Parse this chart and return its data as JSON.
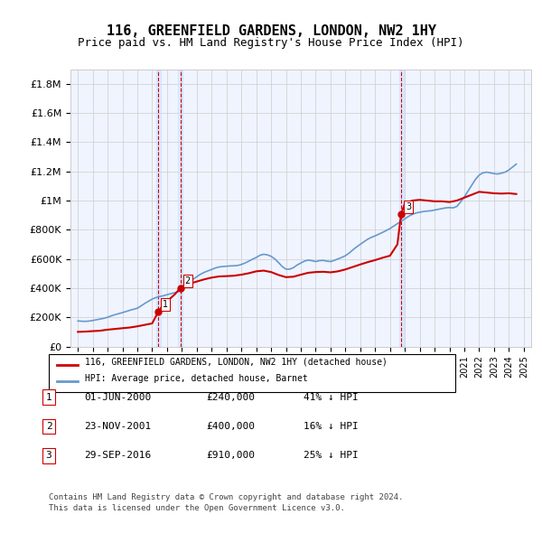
{
  "title": "116, GREENFIELD GARDENS, LONDON, NW2 1HY",
  "subtitle": "Price paid vs. HM Land Registry's House Price Index (HPI)",
  "legend_red": "116, GREENFIELD GARDENS, LONDON, NW2 1HY (detached house)",
  "legend_blue": "HPI: Average price, detached house, Barnet",
  "footer1": "Contains HM Land Registry data © Crown copyright and database right 2024.",
  "footer2": "This data is licensed under the Open Government Licence v3.0.",
  "transactions": [
    {
      "num": 1,
      "date": "01-JUN-2000",
      "price": 240000,
      "pct": "41%",
      "direction": "↓",
      "year_x": 2000.42
    },
    {
      "num": 2,
      "date": "23-NOV-2001",
      "price": 400000,
      "pct": "16%",
      "direction": "↓",
      "year_x": 2001.9
    },
    {
      "num": 3,
      "date": "29-SEP-2016",
      "price": 910000,
      "pct": "25%",
      "direction": "↓",
      "year_x": 2016.75
    }
  ],
  "ylim": [
    0,
    1900000
  ],
  "xlim_start": 1994.5,
  "xlim_end": 2025.5,
  "yticks": [
    0,
    200000,
    400000,
    600000,
    800000,
    1000000,
    1200000,
    1400000,
    1600000,
    1800000
  ],
  "ytick_labels": [
    "£0",
    "£200K",
    "£400K",
    "£600K",
    "£800K",
    "£1M",
    "£1.2M",
    "£1.4M",
    "£1.6M",
    "£1.8M"
  ],
  "xticks": [
    1995,
    1996,
    1997,
    1998,
    1999,
    2000,
    2001,
    2002,
    2003,
    2004,
    2005,
    2006,
    2007,
    2008,
    2009,
    2010,
    2011,
    2012,
    2013,
    2014,
    2015,
    2016,
    2017,
    2018,
    2019,
    2020,
    2021,
    2022,
    2023,
    2024,
    2025
  ],
  "red_color": "#cc0000",
  "blue_color": "#6699cc",
  "vline_color": "#cc0000",
  "shade_color": "#cce0ff",
  "marker_color": "#cc0000",
  "background_color": "#ffffff",
  "grid_color": "#cccccc",
  "hpi_data": {
    "years": [
      1995.0,
      1995.25,
      1995.5,
      1995.75,
      1996.0,
      1996.25,
      1996.5,
      1996.75,
      1997.0,
      1997.25,
      1997.5,
      1997.75,
      1998.0,
      1998.25,
      1998.5,
      1998.75,
      1999.0,
      1999.25,
      1999.5,
      1999.75,
      2000.0,
      2000.25,
      2000.5,
      2000.75,
      2001.0,
      2001.25,
      2001.5,
      2001.75,
      2002.0,
      2002.25,
      2002.5,
      2002.75,
      2003.0,
      2003.25,
      2003.5,
      2003.75,
      2004.0,
      2004.25,
      2004.5,
      2004.75,
      2005.0,
      2005.25,
      2005.5,
      2005.75,
      2006.0,
      2006.25,
      2006.5,
      2006.75,
      2007.0,
      2007.25,
      2007.5,
      2007.75,
      2008.0,
      2008.25,
      2008.5,
      2008.75,
      2009.0,
      2009.25,
      2009.5,
      2009.75,
      2010.0,
      2010.25,
      2010.5,
      2010.75,
      2011.0,
      2011.25,
      2011.5,
      2011.75,
      2012.0,
      2012.25,
      2012.5,
      2012.75,
      2013.0,
      2013.25,
      2013.5,
      2013.75,
      2014.0,
      2014.25,
      2014.5,
      2014.75,
      2015.0,
      2015.25,
      2015.5,
      2015.75,
      2016.0,
      2016.25,
      2016.5,
      2016.75,
      2017.0,
      2017.25,
      2017.5,
      2017.75,
      2018.0,
      2018.25,
      2018.5,
      2018.75,
      2019.0,
      2019.25,
      2019.5,
      2019.75,
      2020.0,
      2020.25,
      2020.5,
      2020.75,
      2021.0,
      2021.25,
      2021.5,
      2021.75,
      2022.0,
      2022.25,
      2022.5,
      2022.75,
      2023.0,
      2023.25,
      2023.5,
      2023.75,
      2024.0,
      2024.25,
      2024.5
    ],
    "values": [
      175000,
      173000,
      172000,
      174000,
      178000,
      183000,
      188000,
      193000,
      200000,
      210000,
      218000,
      225000,
      232000,
      240000,
      248000,
      255000,
      262000,
      278000,
      295000,
      310000,
      325000,
      335000,
      342000,
      348000,
      355000,
      362000,
      368000,
      375000,
      390000,
      415000,
      438000,
      460000,
      478000,
      495000,
      508000,
      518000,
      528000,
      538000,
      545000,
      548000,
      550000,
      552000,
      553000,
      555000,
      562000,
      572000,
      585000,
      598000,
      610000,
      625000,
      632000,
      628000,
      618000,
      600000,
      575000,
      548000,
      530000,
      530000,
      540000,
      558000,
      572000,
      585000,
      592000,
      588000,
      582000,
      588000,
      590000,
      585000,
      582000,
      590000,
      600000,
      610000,
      622000,
      640000,
      662000,
      682000,
      700000,
      718000,
      735000,
      748000,
      758000,
      770000,
      782000,
      795000,
      808000,
      825000,
      842000,
      858000,
      875000,
      892000,
      905000,
      915000,
      920000,
      925000,
      928000,
      930000,
      935000,
      940000,
      945000,
      950000,
      952000,
      950000,
      960000,
      990000,
      1025000,
      1065000,
      1105000,
      1145000,
      1175000,
      1190000,
      1195000,
      1190000,
      1185000,
      1182000,
      1188000,
      1195000,
      1210000,
      1230000,
      1250000
    ]
  },
  "price_paid_data": {
    "years": [
      1995.0,
      1995.5,
      1996.0,
      1996.5,
      1997.0,
      1997.5,
      1998.0,
      1998.5,
      1999.0,
      1999.5,
      2000.0,
      2000.42,
      2000.75,
      2001.0,
      2001.5,
      2001.9,
      2002.0,
      2002.5,
      2003.0,
      2003.5,
      2004.0,
      2004.5,
      2005.0,
      2005.5,
      2006.0,
      2006.5,
      2007.0,
      2007.5,
      2008.0,
      2008.5,
      2009.0,
      2009.5,
      2010.0,
      2010.5,
      2011.0,
      2011.5,
      2012.0,
      2012.5,
      2013.0,
      2013.5,
      2014.0,
      2014.5,
      2015.0,
      2015.5,
      2016.0,
      2016.5,
      2016.75,
      2017.0,
      2017.5,
      2018.0,
      2018.5,
      2019.0,
      2019.5,
      2020.0,
      2020.5,
      2021.0,
      2021.5,
      2022.0,
      2022.5,
      2023.0,
      2023.5,
      2024.0,
      2024.5
    ],
    "values": [
      100000,
      102000,
      105000,
      108000,
      115000,
      120000,
      125000,
      130000,
      138000,
      148000,
      158000,
      240000,
      285000,
      310000,
      355000,
      400000,
      410000,
      430000,
      445000,
      460000,
      472000,
      480000,
      482000,
      485000,
      492000,
      502000,
      515000,
      520000,
      510000,
      490000,
      475000,
      478000,
      492000,
      505000,
      510000,
      512000,
      508000,
      515000,
      528000,
      545000,
      562000,
      578000,
      592000,
      608000,
      622000,
      700000,
      910000,
      980000,
      1000000,
      1005000,
      1000000,
      995000,
      995000,
      990000,
      1000000,
      1020000,
      1040000,
      1060000,
      1055000,
      1050000,
      1048000,
      1050000,
      1045000
    ]
  }
}
